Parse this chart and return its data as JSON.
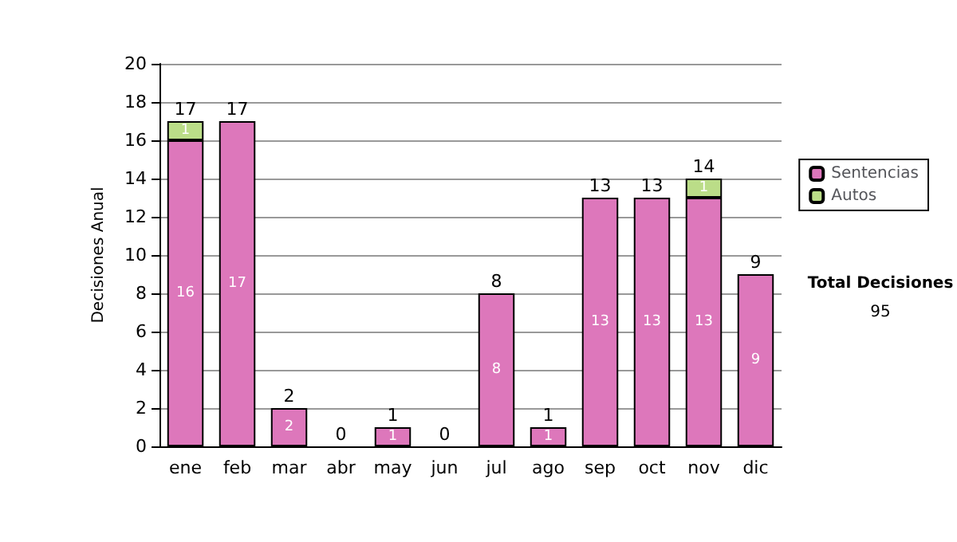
{
  "chart_data": {
    "type": "bar",
    "stacked": true,
    "ylabel": "Decisiones Anual",
    "categories": [
      "ene",
      "feb",
      "mar",
      "abr",
      "may",
      "jun",
      "jul",
      "ago",
      "sep",
      "oct",
      "nov",
      "dic"
    ],
    "series": [
      {
        "name": "Sentencias",
        "color": "#dd77bb",
        "values": [
          16,
          17,
          2,
          0,
          1,
          0,
          8,
          1,
          13,
          13,
          13,
          9
        ],
        "value_labels": [
          "16",
          "17",
          "2",
          null,
          "1",
          null,
          "8",
          "1",
          "13",
          "13",
          "13",
          "9"
        ]
      },
      {
        "name": "Autos",
        "color": "#bbdd88",
        "values": [
          1,
          0,
          0,
          0,
          0,
          0,
          0,
          0,
          0,
          0,
          1,
          0
        ],
        "value_labels": [
          "1",
          null,
          null,
          null,
          null,
          null,
          null,
          null,
          null,
          null,
          "1",
          null
        ]
      }
    ],
    "totals": [
      "17",
      "17",
      "2",
      "0",
      "1",
      "0",
      "8",
      "1",
      "13",
      "13",
      "14",
      "9"
    ],
    "ylim": [
      0,
      20
    ],
    "yticks": [
      0,
      2,
      4,
      6,
      8,
      10,
      12,
      14,
      16,
      18,
      20
    ],
    "grid": "y",
    "legend": "right",
    "annotations": [
      "Total Decisiones",
      "95"
    ]
  }
}
